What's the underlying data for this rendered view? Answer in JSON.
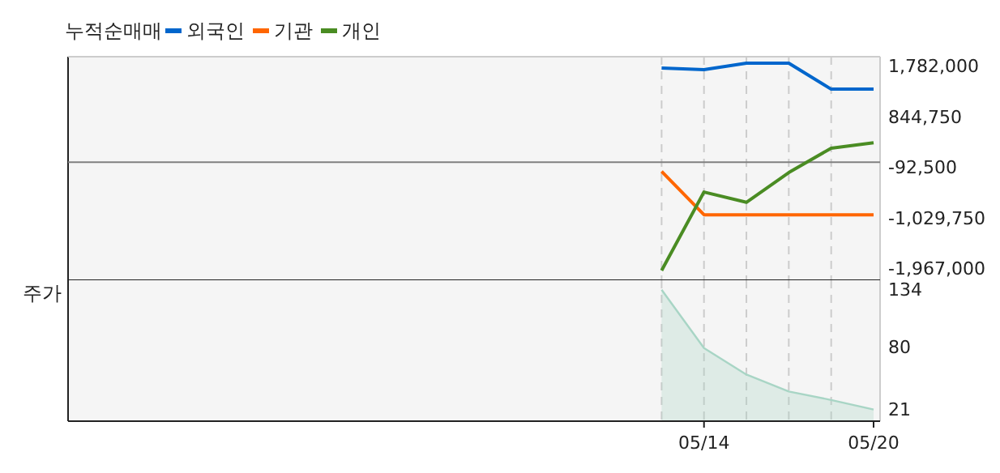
{
  "chart_data": [
    {
      "type": "line",
      "title": "누적순매매",
      "categories": [
        null,
        null,
        null,
        null,
        null,
        null,
        null,
        null,
        null,
        null,
        null,
        null,
        null,
        null,
        null,
        null,
        null,
        null,
        null,
        null
      ],
      "legend": "top left",
      "grid": "x",
      "tick_labels": "y",
      "ylim": [
        -2180000,
        1950000
      ],
      "yticks": [
        {
          "value": 1782000,
          "label": "1,782,000"
        },
        {
          "value": 844750,
          "label": "844,750"
        },
        {
          "value": -92500,
          "label": "-92,500"
        },
        {
          "value": -1029750,
          "label": "-1,029,750"
        },
        {
          "value": -1967000,
          "label": "-1,967,000"
        }
      ],
      "ref_lines": [
        {
          "axis": "y",
          "value": 0,
          "color": "#808080"
        }
      ],
      "series": [
        {
          "name": "외국인",
          "color": "#0066cc",
          "values": [
            null,
            null,
            null,
            null,
            null,
            null,
            null,
            null,
            null,
            null,
            null,
            null,
            null,
            null,
            1740000,
            1710000,
            1830000,
            1830000,
            1350000,
            1350000
          ]
        },
        {
          "name": "기관",
          "color": "#ff6600",
          "values": [
            null,
            null,
            null,
            null,
            null,
            null,
            null,
            null,
            null,
            null,
            null,
            null,
            null,
            null,
            -170000,
            -970000,
            -970000,
            -970000,
            -970000,
            -970000
          ]
        },
        {
          "name": "개인",
          "color": "#4a8c23",
          "values": [
            null,
            null,
            null,
            null,
            null,
            null,
            null,
            null,
            null,
            null,
            null,
            null,
            null,
            null,
            -2000000,
            -550000,
            -740000,
            -190000,
            260000,
            360000
          ]
        }
      ]
    },
    {
      "type": "area",
      "ylabel": "주가",
      "categories": [
        null,
        null,
        null,
        null,
        null,
        null,
        null,
        null,
        null,
        null,
        null,
        null,
        null,
        null,
        null,
        "05/14",
        null,
        null,
        null,
        "05/20"
      ],
      "grid": "x",
      "legend": false,
      "ylim": [
        10,
        143
      ],
      "yticks": [
        134,
        80,
        21
      ],
      "series": [
        {
          "color": "#a8d5c5",
          "values": [
            null,
            null,
            null,
            null,
            null,
            null,
            null,
            null,
            null,
            null,
            null,
            null,
            null,
            null,
            134,
            79,
            54,
            38,
            30,
            21
          ]
        }
      ]
    }
  ]
}
